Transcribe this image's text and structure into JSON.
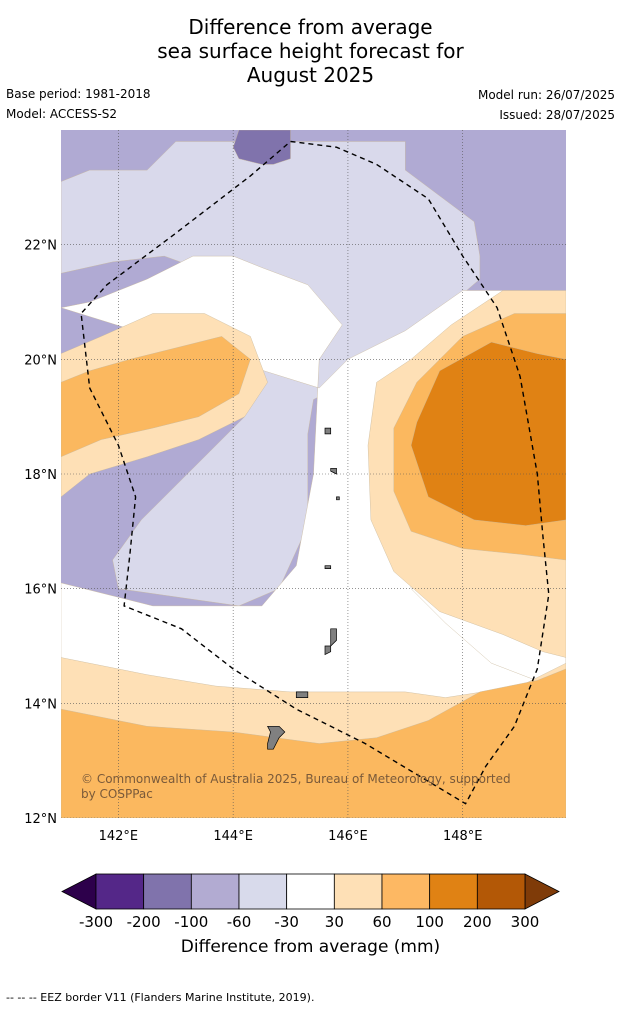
{
  "title": {
    "line1": "Difference from average",
    "line2": "sea surface height forecast for",
    "line3": "August 2025"
  },
  "meta": {
    "base_period": "Base period: 1981-2018",
    "model": "Model: ACCESS-S2",
    "model_run": "Model run: 26/07/2025",
    "issued": "Issued: 28/07/2025"
  },
  "map": {
    "lon_min": 141.0,
    "lon_max": 149.8,
    "lat_min": 12.0,
    "lat_max": 24.0,
    "lon_ticks": [
      {
        "value": 142,
        "label": "142°E"
      },
      {
        "value": 144,
        "label": "144°E"
      },
      {
        "value": 146,
        "label": "146°E"
      },
      {
        "value": 148,
        "label": "148°E"
      }
    ],
    "lat_ticks": [
      {
        "value": 12,
        "label": "12°N"
      },
      {
        "value": 14,
        "label": "14°N"
      },
      {
        "value": 16,
        "label": "16°N"
      },
      {
        "value": 18,
        "label": "18°N"
      },
      {
        "value": 20,
        "label": "20°N"
      },
      {
        "value": 22,
        "label": "22°N"
      }
    ],
    "copyright": "© Commonwealth of Australia 2025, Bureau of Meteorology, supported by COSPPac",
    "eez_border": [
      [
        145.0,
        23.8
      ],
      [
        145.8,
        23.7
      ],
      [
        146.5,
        23.4
      ],
      [
        147.4,
        22.8
      ],
      [
        148.0,
        21.8
      ],
      [
        148.6,
        20.9
      ],
      [
        149.0,
        19.7
      ],
      [
        149.3,
        18.0
      ],
      [
        149.4,
        16.9
      ],
      [
        149.5,
        15.9
      ],
      [
        149.3,
        14.6
      ],
      [
        148.9,
        13.6
      ],
      [
        148.4,
        12.9
      ],
      [
        148.05,
        12.25
      ],
      [
        147.3,
        12.7
      ],
      [
        146.3,
        13.3
      ],
      [
        145.1,
        13.9
      ],
      [
        144.0,
        14.6
      ],
      [
        143.1,
        15.3
      ],
      [
        142.1,
        15.7
      ],
      [
        142.2,
        16.6
      ],
      [
        142.3,
        17.6
      ],
      [
        142.0,
        18.5
      ],
      [
        141.5,
        19.5
      ],
      [
        141.35,
        20.8
      ],
      [
        141.8,
        21.3
      ],
      [
        143.0,
        22.2
      ],
      [
        144.3,
        23.2
      ],
      [
        145.0,
        23.8
      ]
    ],
    "contours": [
      {
        "level": "-100",
        "color": "#b0aad3",
        "points": [
          [
            141.0,
            24.0
          ],
          [
            149.8,
            24.0
          ],
          [
            149.8,
            12.0
          ],
          [
            141.0,
            12.0
          ]
        ]
      },
      {
        "level": "-60",
        "color": "#d9d9eb",
        "points": [
          [
            141.0,
            23.1
          ],
          [
            141.5,
            23.3
          ],
          [
            142.5,
            23.3
          ],
          [
            143.0,
            23.8
          ],
          [
            147.0,
            23.8
          ],
          [
            147.0,
            23.3
          ],
          [
            148.2,
            22.4
          ],
          [
            148.3,
            21.8
          ],
          [
            148.3,
            21.4
          ],
          [
            147.6,
            20.8
          ],
          [
            146.6,
            20.0
          ],
          [
            145.8,
            19.5
          ],
          [
            145.4,
            19.3
          ],
          [
            145.3,
            18.7
          ],
          [
            145.3,
            17.1
          ],
          [
            144.8,
            16.0
          ],
          [
            144.1,
            15.7
          ],
          [
            142.0,
            16.0
          ],
          [
            141.9,
            16.5
          ],
          [
            142.4,
            17.2
          ],
          [
            143.6,
            18.4
          ],
          [
            144.2,
            19.0
          ],
          [
            144.5,
            19.8
          ],
          [
            144.4,
            20.8
          ],
          [
            143.9,
            21.4
          ],
          [
            142.8,
            21.8
          ],
          [
            141.9,
            21.7
          ],
          [
            141.0,
            21.5
          ]
        ]
      },
      {
        "level": "-30",
        "color": "#ffffff",
        "points": [
          [
            141.0,
            20.9
          ],
          [
            141.5,
            21.0
          ],
          [
            142.5,
            21.4
          ],
          [
            143.3,
            21.8
          ],
          [
            144.0,
            21.8
          ],
          [
            144.5,
            21.6
          ],
          [
            145.3,
            21.3
          ],
          [
            145.9,
            20.6
          ],
          [
            145.5,
            20.0
          ],
          [
            145.4,
            18.0
          ],
          [
            145.1,
            16.4
          ],
          [
            144.5,
            15.7
          ],
          [
            142.6,
            15.7
          ],
          [
            141.0,
            16.1
          ],
          [
            141.0,
            12.0
          ],
          [
            149.8,
            12.0
          ],
          [
            149.8,
            17.0
          ],
          [
            149.0,
            17.5
          ],
          [
            148.0,
            17.6
          ],
          [
            147.3,
            17.4
          ],
          [
            147.0,
            16.8
          ],
          [
            147.1,
            16.0
          ],
          [
            147.7,
            15.4
          ],
          [
            148.5,
            14.7
          ],
          [
            149.8,
            14.2
          ],
          [
            149.8,
            20.8
          ],
          [
            149.0,
            21.2
          ],
          [
            148.0,
            21.2
          ],
          [
            147.0,
            20.5
          ],
          [
            146.0,
            20.0
          ],
          [
            145.5,
            19.5
          ]
        ]
      },
      {
        "level": "30",
        "color": "#fee0b6",
        "points": [
          [
            141.0,
            17.6
          ],
          [
            141.5,
            18.0
          ],
          [
            142.5,
            18.3
          ],
          [
            143.4,
            18.6
          ],
          [
            144.2,
            19.0
          ],
          [
            144.6,
            19.6
          ],
          [
            144.3,
            20.4
          ],
          [
            143.5,
            20.8
          ],
          [
            142.6,
            20.8
          ],
          [
            141.7,
            20.4
          ],
          [
            141.0,
            20.1
          ]
        ]
      },
      {
        "level": "60",
        "color": "#fbb85f",
        "points": [
          [
            141.0,
            18.3
          ],
          [
            141.7,
            18.6
          ],
          [
            142.6,
            18.8
          ],
          [
            143.4,
            19.0
          ],
          [
            144.1,
            19.4
          ],
          [
            144.3,
            20.0
          ],
          [
            143.8,
            20.4
          ],
          [
            143.0,
            20.2
          ],
          [
            142.2,
            20.0
          ],
          [
            141.5,
            19.8
          ],
          [
            141.0,
            19.6
          ]
        ]
      },
      {
        "level": "30",
        "color": "#fee0b6",
        "points": [
          [
            149.8,
            21.2
          ],
          [
            148.7,
            21.2
          ],
          [
            147.8,
            20.6
          ],
          [
            147.1,
            20.0
          ],
          [
            146.5,
            19.6
          ],
          [
            146.35,
            18.5
          ],
          [
            146.4,
            17.2
          ],
          [
            146.8,
            16.3
          ],
          [
            147.6,
            15.6
          ],
          [
            148.7,
            15.2
          ],
          [
            149.4,
            14.9
          ],
          [
            149.8,
            14.8
          ]
        ]
      },
      {
        "level": "60",
        "color": "#fbb85f",
        "points": [
          [
            149.8,
            20.8
          ],
          [
            148.9,
            20.8
          ],
          [
            148.0,
            20.4
          ],
          [
            147.2,
            19.6
          ],
          [
            146.8,
            18.8
          ],
          [
            146.8,
            17.7
          ],
          [
            147.1,
            17.0
          ],
          [
            148.0,
            16.7
          ],
          [
            149.0,
            16.6
          ],
          [
            149.8,
            16.5
          ]
        ]
      },
      {
        "level": "100",
        "color": "#e08214",
        "points": [
          [
            149.8,
            20.0
          ],
          [
            149.3,
            20.1
          ],
          [
            148.5,
            20.3
          ],
          [
            147.6,
            19.8
          ],
          [
            147.2,
            18.9
          ],
          [
            147.1,
            18.5
          ],
          [
            147.4,
            17.6
          ],
          [
            148.2,
            17.2
          ],
          [
            149.1,
            17.1
          ],
          [
            149.8,
            17.2
          ]
        ]
      },
      {
        "level": "30",
        "color": "#fee0b6",
        "points": [
          [
            141.0,
            14.8
          ],
          [
            142.5,
            14.5
          ],
          [
            143.7,
            14.3
          ],
          [
            145.0,
            14.2
          ],
          [
            147.0,
            14.2
          ],
          [
            147.7,
            14.1
          ],
          [
            149.0,
            14.3
          ],
          [
            149.8,
            14.7
          ],
          [
            149.8,
            12.0
          ],
          [
            141.0,
            12.0
          ]
        ]
      },
      {
        "level": "60",
        "color": "#fbb85f",
        "points": [
          [
            141.0,
            13.9
          ],
          [
            142.5,
            13.6
          ],
          [
            144.0,
            13.5
          ],
          [
            145.5,
            13.3
          ],
          [
            146.5,
            13.4
          ],
          [
            147.4,
            13.7
          ],
          [
            148.3,
            14.2
          ],
          [
            149.3,
            14.4
          ],
          [
            149.8,
            14.6
          ],
          [
            149.8,
            12.0
          ],
          [
            141.0,
            12.0
          ]
        ]
      },
      {
        "level": "-200",
        "color": "#8073ac",
        "points": [
          [
            144.1,
            24.0
          ],
          [
            145.0,
            24.0
          ],
          [
            145.0,
            23.5
          ],
          [
            144.7,
            23.4
          ],
          [
            144.5,
            23.4
          ],
          [
            144.1,
            23.5
          ],
          [
            144.0,
            23.7
          ]
        ]
      }
    ],
    "islands": [
      {
        "name": "Guam",
        "points": [
          [
            144.6,
            13.6
          ],
          [
            144.8,
            13.6
          ],
          [
            144.9,
            13.5
          ],
          [
            144.8,
            13.4
          ],
          [
            144.7,
            13.2
          ],
          [
            144.6,
            13.2
          ],
          [
            144.6,
            13.3
          ],
          [
            144.65,
            13.5
          ]
        ]
      },
      {
        "name": "Rota",
        "points": [
          [
            145.1,
            14.2
          ],
          [
            145.3,
            14.2
          ],
          [
            145.3,
            14.1
          ],
          [
            145.1,
            14.1
          ]
        ]
      },
      {
        "name": "Saipan",
        "points": [
          [
            145.7,
            15.3
          ],
          [
            145.8,
            15.3
          ],
          [
            145.8,
            15.1
          ],
          [
            145.7,
            15.0
          ]
        ]
      },
      {
        "name": "Tinian",
        "points": [
          [
            145.6,
            15.0
          ],
          [
            145.7,
            15.0
          ],
          [
            145.7,
            14.9
          ],
          [
            145.6,
            14.85
          ]
        ]
      },
      {
        "name": "Anatahan",
        "points": [
          [
            145.6,
            16.4
          ],
          [
            145.7,
            16.4
          ],
          [
            145.7,
            16.35
          ],
          [
            145.6,
            16.35
          ]
        ]
      },
      {
        "name": "Pagan",
        "points": [
          [
            145.7,
            18.1
          ],
          [
            145.8,
            18.1
          ],
          [
            145.8,
            18.0
          ],
          [
            145.7,
            18.05
          ]
        ]
      },
      {
        "name": "Alamagan",
        "points": [
          [
            145.8,
            17.6
          ],
          [
            145.85,
            17.6
          ],
          [
            145.85,
            17.55
          ],
          [
            145.8,
            17.55
          ]
        ]
      },
      {
        "name": "Agrihan",
        "points": [
          [
            145.6,
            18.8
          ],
          [
            145.7,
            18.8
          ],
          [
            145.7,
            18.7
          ],
          [
            145.6,
            18.7
          ]
        ]
      }
    ]
  },
  "colorbar": {
    "title": "Difference from average (mm)",
    "ticks": [
      "-300",
      "-200",
      "-100",
      "-60",
      "-30",
      "30",
      "60",
      "100",
      "200",
      "300"
    ],
    "extend_min_color": "#2d004b",
    "extend_max_color": "#7f3b08",
    "colors": [
      "#542788",
      "#8073ac",
      "#b2abd2",
      "#d8daeb",
      "#ffffff",
      "#fee0b6",
      "#fdb863",
      "#e08214",
      "#b35806"
    ]
  },
  "footnote": "--  --  -- EEZ border V11 (Flanders Marine Institute, 2019)."
}
